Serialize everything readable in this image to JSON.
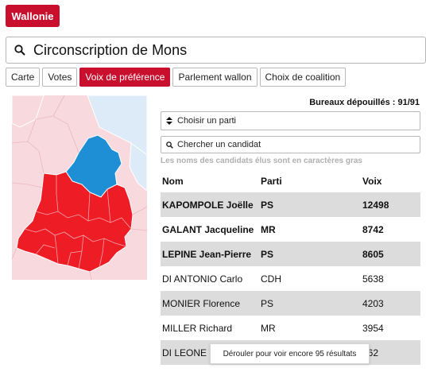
{
  "header": {
    "region_label": "Wallonie"
  },
  "search": {
    "value": "Circonscription de Mons",
    "icon": "search-icon"
  },
  "tabs": [
    {
      "label": "Carte",
      "active": false
    },
    {
      "label": "Votes",
      "active": false
    },
    {
      "label": "Voix de préférence",
      "active": true
    },
    {
      "label": "Parlement wallon",
      "active": false
    },
    {
      "label": "Choix de coalition",
      "active": false
    }
  ],
  "counter": "Bureaux dépouillés : 91/91",
  "filters": {
    "party_placeholder": "Choisir un parti",
    "candidate_placeholder": "Chercher un candidat",
    "note": "Les noms des candidats élus sont en caractères gras"
  },
  "table": {
    "headers": {
      "name": "Nom",
      "party": "Parti",
      "votes": "Voix"
    },
    "rows": [
      {
        "name": "KAPOMPOLE Joëlle",
        "party": "PS",
        "votes": "12498",
        "elected": true
      },
      {
        "name": "GALANT Jacqueline",
        "party": "MR",
        "votes": "8742",
        "elected": true
      },
      {
        "name": "LEPINE Jean-Pierre",
        "party": "PS",
        "votes": "8605",
        "elected": true
      },
      {
        "name": "DI ANTONIO Carlo",
        "party": "CDH",
        "votes": "5638",
        "elected": false
      },
      {
        "name": "MONIER Florence",
        "party": "PS",
        "votes": "4203",
        "elected": false
      },
      {
        "name": "MILLER Richard",
        "party": "MR",
        "votes": "3954",
        "elected": false
      },
      {
        "name": "DI LEONE",
        "party": "",
        "votes": "562",
        "elected": false
      }
    ]
  },
  "scroll_button": "Dérouler pour voir encore 95 résultats",
  "colors": {
    "accent": "#c8102e",
    "ps_red": "#ee1c25",
    "mr_blue": "#1e8fd5",
    "neighbor_pink": "#f8d9dd",
    "neighbor_blue": "#dcebf7"
  }
}
